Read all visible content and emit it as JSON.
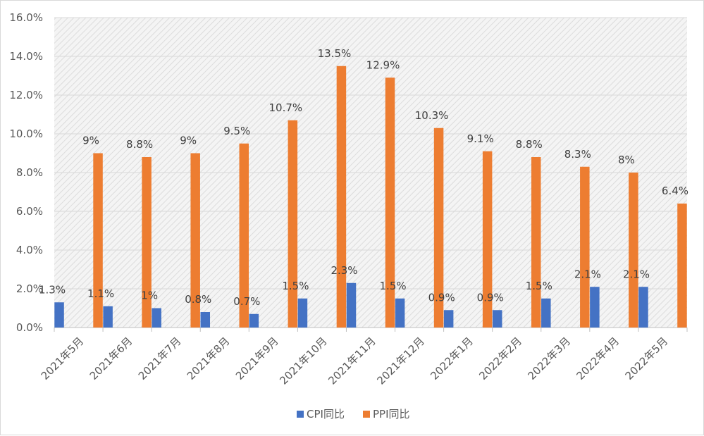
{
  "chart_data": {
    "type": "bar",
    "title": "",
    "xlabel": "",
    "ylabel": "",
    "categories": [
      "2021年5月",
      "2021年6月",
      "2021年7月",
      "2021年8月",
      "2021年9月",
      "2021年10月",
      "2021年11月",
      "2021年12月",
      "2022年1月",
      "2022年2月",
      "2022年3月",
      "2022年4月",
      "2022年5月"
    ],
    "series": [
      {
        "name": "CPI同比",
        "color": "#4472c4",
        "values": [
          1.3,
          1.1,
          1.0,
          0.8,
          0.7,
          1.5,
          2.3,
          1.5,
          0.9,
          0.9,
          1.5,
          2.1,
          2.1
        ],
        "labels": [
          "1.3%",
          "1.1%",
          "1%",
          "0.8%",
          "0.7%",
          "1.5%",
          "2.3%",
          "1.5%",
          "0.9%",
          "0.9%",
          "1.5%",
          "2.1%",
          "2.1%"
        ]
      },
      {
        "name": "PPI同比",
        "color": "#ed7d31",
        "values": [
          9.0,
          8.8,
          9.0,
          9.5,
          10.7,
          13.5,
          12.9,
          10.3,
          9.1,
          8.8,
          8.3,
          8.0,
          6.4
        ],
        "labels": [
          "9%",
          "8.8%",
          "9%",
          "9.5%",
          "10.7%",
          "13.5%",
          "12.9%",
          "10.3%",
          "9.1%",
          "8.8%",
          "8.3%",
          "8%",
          "6.4%"
        ]
      }
    ],
    "ylim": [
      0,
      16
    ],
    "yticks": [
      "0.0%",
      "2.0%",
      "4.0%",
      "6.0%",
      "8.0%",
      "10.0%",
      "12.0%",
      "14.0%",
      "16.0%"
    ],
    "grid": true,
    "plot_background": "hatched light gray",
    "legend_position": "bottom"
  }
}
